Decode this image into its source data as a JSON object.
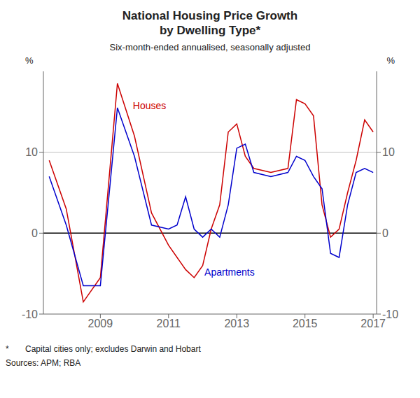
{
  "chart_data": {
    "type": "line",
    "title": "National Housing Price Growth\nby Dwelling Type*",
    "subtitle": "Six-month-ended annualised, seasonally adjusted",
    "footnote": "*       Capital cities only; excludes Darwin and Hobart",
    "sources": "Sources: APM; RBA",
    "ylabel": "%",
    "y2label": "%",
    "xlim": [
      2007.33,
      2017.1
    ],
    "xticks": [
      2009,
      2011,
      2013,
      2015,
      2017
    ],
    "ylim": [
      -10,
      20
    ],
    "yticks": [
      -10,
      0,
      10
    ],
    "y2lim": [
      -10,
      20
    ],
    "y2ticks": [
      -10,
      0,
      10
    ],
    "hlines": [
      {
        "y": 10,
        "color": "#c0c0c0"
      },
      {
        "y": 0,
        "color": "#000000"
      }
    ],
    "series": [
      {
        "name": "Houses",
        "color": "#cc0000",
        "x": [
          2007.5,
          2008.0,
          2008.5,
          2009.0,
          2009.5,
          2010.0,
          2010.5,
          2011.0,
          2011.5,
          2011.75,
          2012.0,
          2012.25,
          2012.5,
          2012.75,
          2013.0,
          2013.25,
          2013.5,
          2014.0,
          2014.5,
          2014.75,
          2015.0,
          2015.25,
          2015.5,
          2015.75,
          2016.0,
          2016.25,
          2016.5,
          2016.75,
          2017.0
        ],
        "values": [
          9.0,
          3.0,
          -8.5,
          -5.5,
          18.5,
          12.0,
          2.5,
          -1.5,
          -4.5,
          -5.5,
          -4.0,
          0.5,
          3.5,
          12.5,
          13.5,
          9.5,
          8.0,
          7.5,
          8.0,
          16.5,
          16.0,
          14.5,
          3.5,
          -0.5,
          0.5,
          5.0,
          9.0,
          14.0,
          12.5
        ]
      },
      {
        "name": "Apartments",
        "color": "#0000cc",
        "x": [
          2007.5,
          2008.0,
          2008.5,
          2009.0,
          2009.5,
          2010.0,
          2010.5,
          2011.0,
          2011.25,
          2011.5,
          2011.75,
          2012.0,
          2012.25,
          2012.5,
          2012.75,
          2013.0,
          2013.25,
          2013.5,
          2014.0,
          2014.5,
          2014.75,
          2015.0,
          2015.25,
          2015.5,
          2015.75,
          2016.0,
          2016.25,
          2016.5,
          2016.75,
          2017.0
        ],
        "values": [
          7.0,
          1.0,
          -6.5,
          -6.5,
          15.5,
          9.5,
          1.0,
          0.5,
          1.0,
          4.5,
          0.5,
          -0.5,
          0.5,
          -0.5,
          3.5,
          10.5,
          11.0,
          7.5,
          7.0,
          7.5,
          9.5,
          9.0,
          7.0,
          5.5,
          -2.5,
          -3.0,
          3.5,
          7.5,
          8.0,
          7.5
        ]
      }
    ],
    "annotations": [
      {
        "text": "Houses",
        "x": 2009.85,
        "y": 15.8,
        "color": "#cc0000"
      },
      {
        "text": "Apartments",
        "x": 2011.95,
        "y": -4.8,
        "color": "#0000cc"
      }
    ]
  }
}
